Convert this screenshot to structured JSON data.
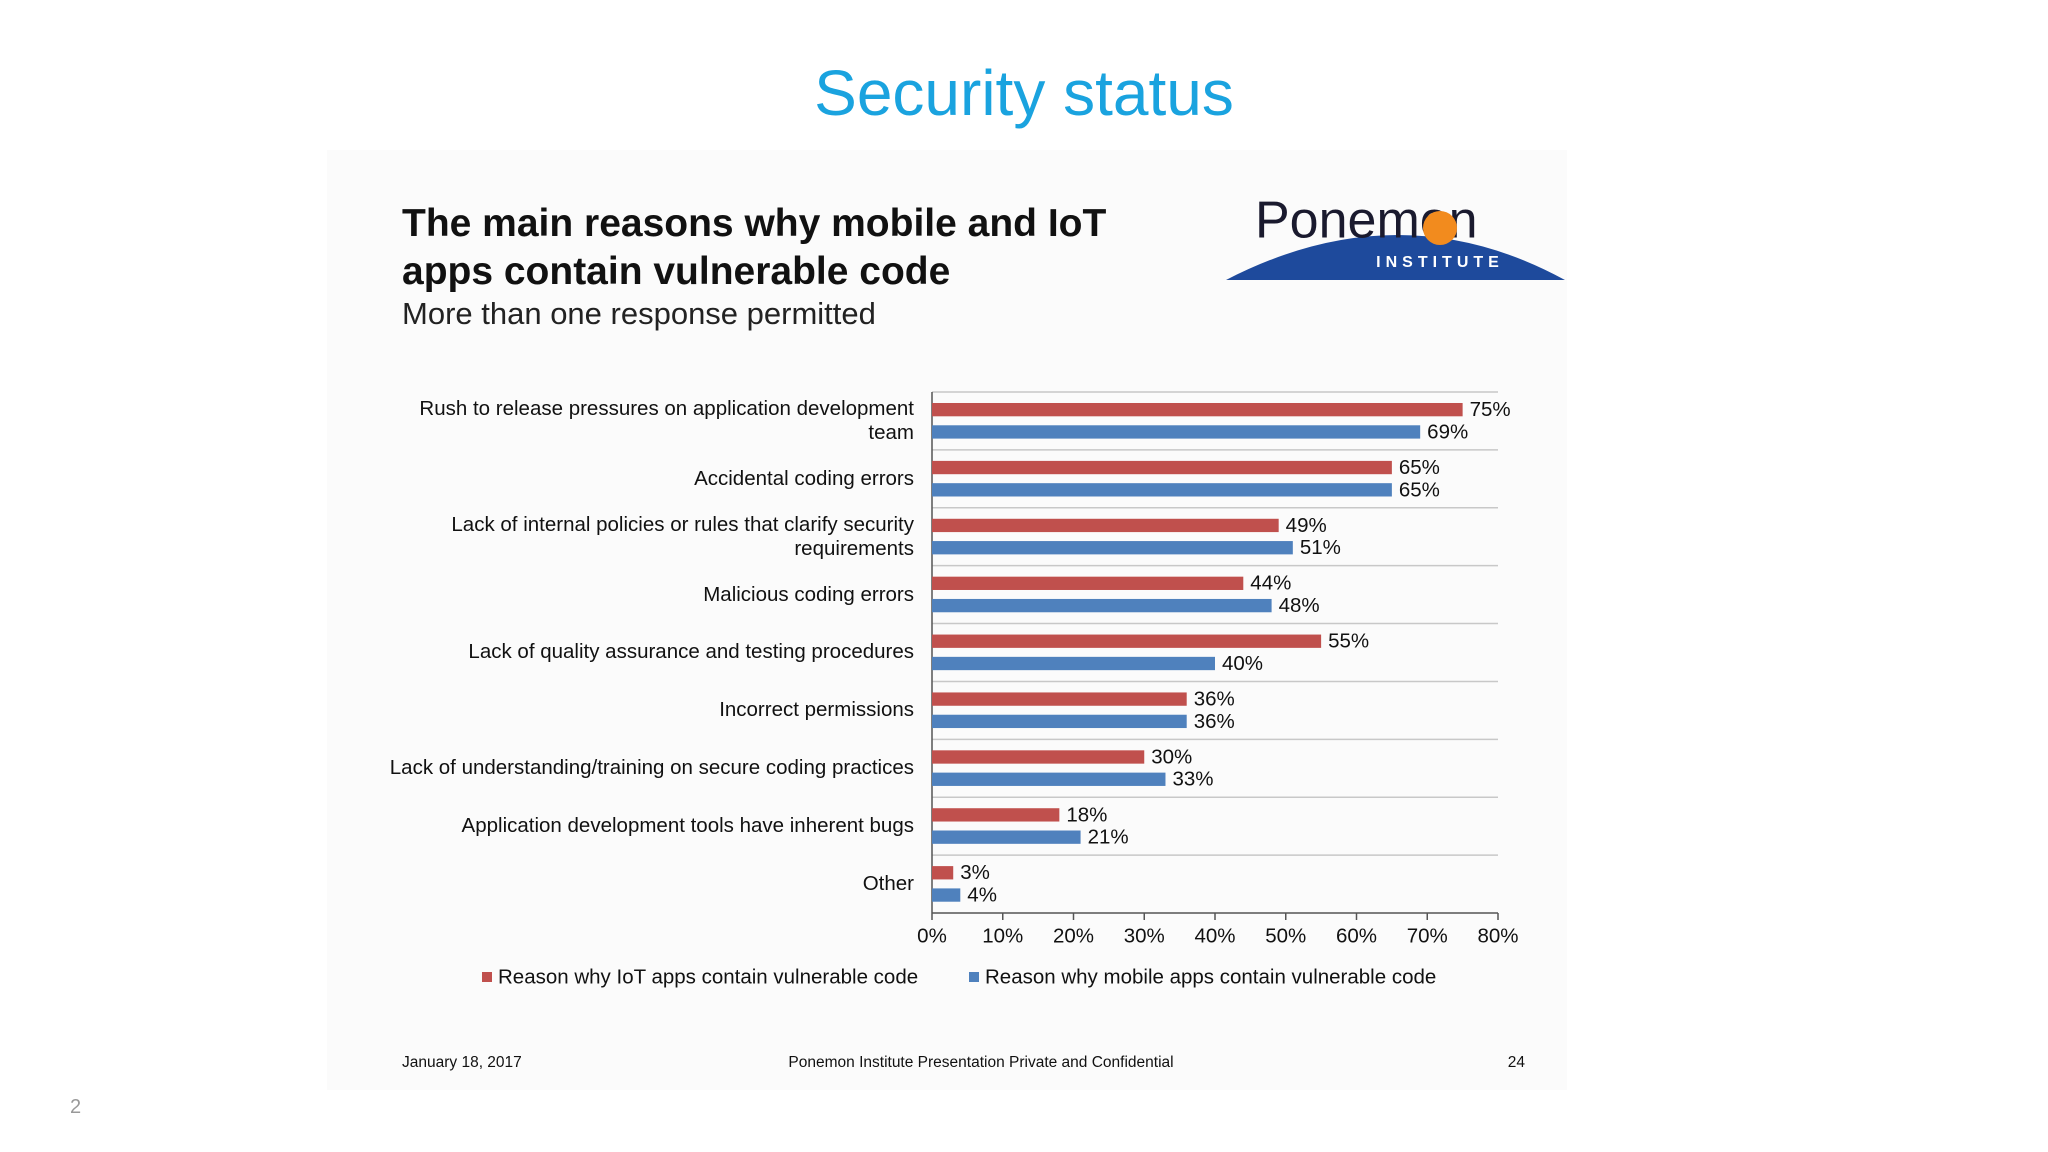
{
  "slide_title": "Security status",
  "logo": {
    "name": "Ponemon",
    "subtitle": "INSTITUTE"
  },
  "chart_data": {
    "type": "hbar",
    "title": "The main reasons why mobile and IoT apps contain vulnerable code",
    "subtitle": "More than one response permitted",
    "categories": [
      "Rush to release pressures on application development team",
      "Accidental coding errors",
      "Lack of internal policies or rules that clarify security requirements",
      "Malicious coding errors",
      "Lack of quality assurance and testing procedures",
      "Incorrect permissions",
      "Lack of understanding/training on secure coding practices",
      "Application development tools have inherent bugs",
      "Other"
    ],
    "series": [
      {
        "name": "Reason why IoT apps contain vulnerable code",
        "color": "#c0504d",
        "values": [
          75,
          65,
          49,
          44,
          55,
          36,
          30,
          18,
          3
        ],
        "value_labels": [
          "75%",
          "65%",
          "49%",
          "44%",
          "55%",
          "36%",
          "30%",
          "18%",
          "3%"
        ]
      },
      {
        "name": "Reason why mobile apps contain vulnerable code",
        "color": "#4f81bd",
        "values": [
          69,
          65,
          51,
          48,
          40,
          36,
          33,
          21,
          4
        ],
        "value_labels": [
          "69%",
          "65%",
          "51%",
          "48%",
          "40%",
          "36%",
          "33%",
          "21%",
          "4%"
        ]
      }
    ],
    "xlim": [
      0,
      80
    ],
    "xticks": [
      {
        "value": 0,
        "label": "0%"
      },
      {
        "value": 10,
        "label": "10%"
      },
      {
        "value": 20,
        "label": "20%"
      },
      {
        "value": 30,
        "label": "30%"
      },
      {
        "value": 40,
        "label": "40%"
      },
      {
        "value": 50,
        "label": "50%"
      },
      {
        "value": 60,
        "label": "60%"
      },
      {
        "value": 70,
        "label": "70%"
      },
      {
        "value": 80,
        "label": "80%"
      }
    ],
    "legend": "bottom"
  },
  "footer": {
    "date": "January 18, 2017",
    "center": "Ponemon Institute Presentation Private and Confidential",
    "page": "24"
  },
  "page_number": "2"
}
